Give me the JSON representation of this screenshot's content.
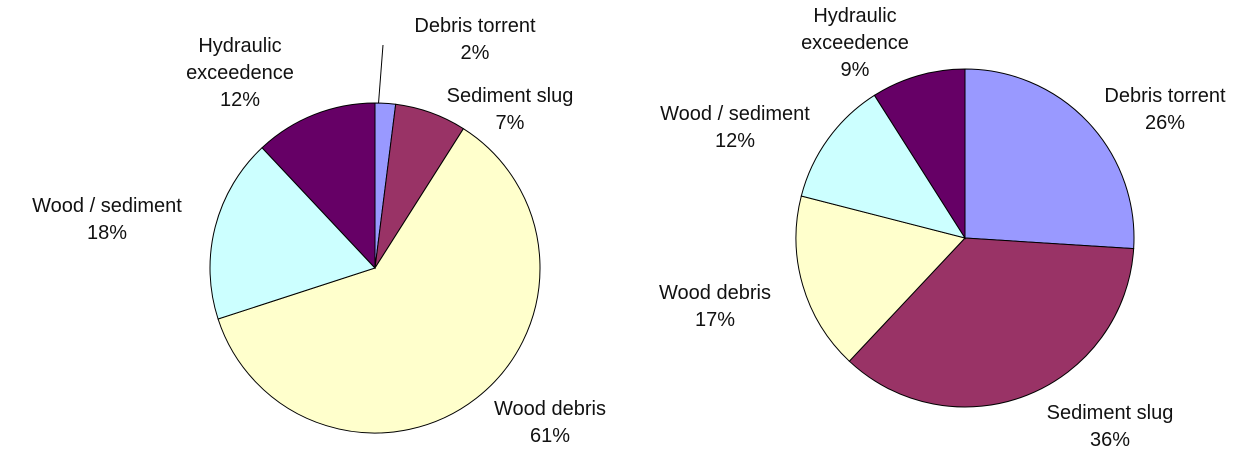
{
  "chart_data": [
    {
      "type": "pie",
      "categories": [
        "Debris torrent",
        "Sediment slug",
        "Wood debris",
        "Wood / sediment",
        "Hydraulic exceedence"
      ],
      "values": [
        2,
        7,
        61,
        18,
        12
      ],
      "value_labels": [
        "2%",
        "7%",
        "61%",
        "18%",
        "12%"
      ],
      "colors": [
        "#9999ff",
        "#993366",
        "#ffffcc",
        "#ccffff",
        "#660066"
      ]
    },
    {
      "type": "pie",
      "categories": [
        "Debris torrent",
        "Sediment slug",
        "Wood debris",
        "Wood / sediment",
        "Hydraulic exceedence"
      ],
      "values": [
        26,
        36,
        17,
        12,
        9
      ],
      "value_labels": [
        "26%",
        "36%",
        "17%",
        "12%",
        "9%"
      ],
      "colors": [
        "#9999ff",
        "#993366",
        "#ffffcc",
        "#ccffff",
        "#660066"
      ]
    }
  ]
}
